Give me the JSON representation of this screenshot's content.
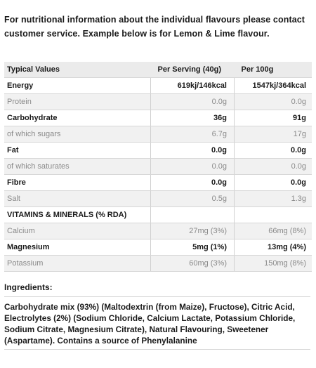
{
  "intro": "For nutritional information about the individual flavours please contact customer service. Example below is for Lemon & Lime flavour.",
  "table": {
    "headers": [
      "Typical Values",
      "Per Serving (40g)",
      "Per 100g"
    ],
    "rows": [
      {
        "name": "Energy",
        "serving": "619kj/146kcal",
        "per100": "1547kj/364kcal",
        "style": "bold",
        "shaded": false
      },
      {
        "name": "Protein",
        "serving": "0.0g",
        "per100": "0.0g",
        "style": "sub",
        "shaded": true
      },
      {
        "name": "Carbohydrate",
        "serving": "36g",
        "per100": "91g",
        "style": "bold",
        "shaded": false
      },
      {
        "name": "of which sugars",
        "serving": "6.7g",
        "per100": "17g",
        "style": "sub",
        "shaded": true
      },
      {
        "name": "Fat",
        "serving": "0.0g",
        "per100": "0.0g",
        "style": "bold",
        "shaded": false
      },
      {
        "name": "of which saturates",
        "serving": "0.0g",
        "per100": "0.0g",
        "style": "sub",
        "shaded": true
      },
      {
        "name": "Fibre",
        "serving": "0.0g",
        "per100": "0.0g",
        "style": "bold",
        "shaded": false
      },
      {
        "name": "Salt",
        "serving": "0.5g",
        "per100": "1.3g",
        "style": "sub",
        "shaded": true
      },
      {
        "name": "VITAMINS & MINERALS (% RDA)",
        "serving": "",
        "per100": "",
        "style": "section",
        "shaded": false
      },
      {
        "name": "Calcium",
        "serving": "27mg (3%)",
        "per100": "66mg (8%)",
        "style": "sub",
        "shaded": true
      },
      {
        "name": "Magnesium",
        "serving": "5mg (1%)",
        "per100": "13mg (4%)",
        "style": "bold",
        "shaded": false
      },
      {
        "name": "Potassium",
        "serving": "60mg (3%)",
        "per100": "150mg (8%)",
        "style": "sub",
        "shaded": true
      }
    ]
  },
  "ingredients": {
    "title": "Ingredients:",
    "text": "Carbohydrate mix (93%) (Maltodextrin (from Maize), Fructose), Citric Acid, Electrolytes (2%) (Sodium Chloride, Calcium Lactate, Potassium Chloride, Sodium Citrate, Magnesium Citrate), Natural Flavouring, Sweetener (Aspartame). Contains a source of Phenylalanine"
  }
}
